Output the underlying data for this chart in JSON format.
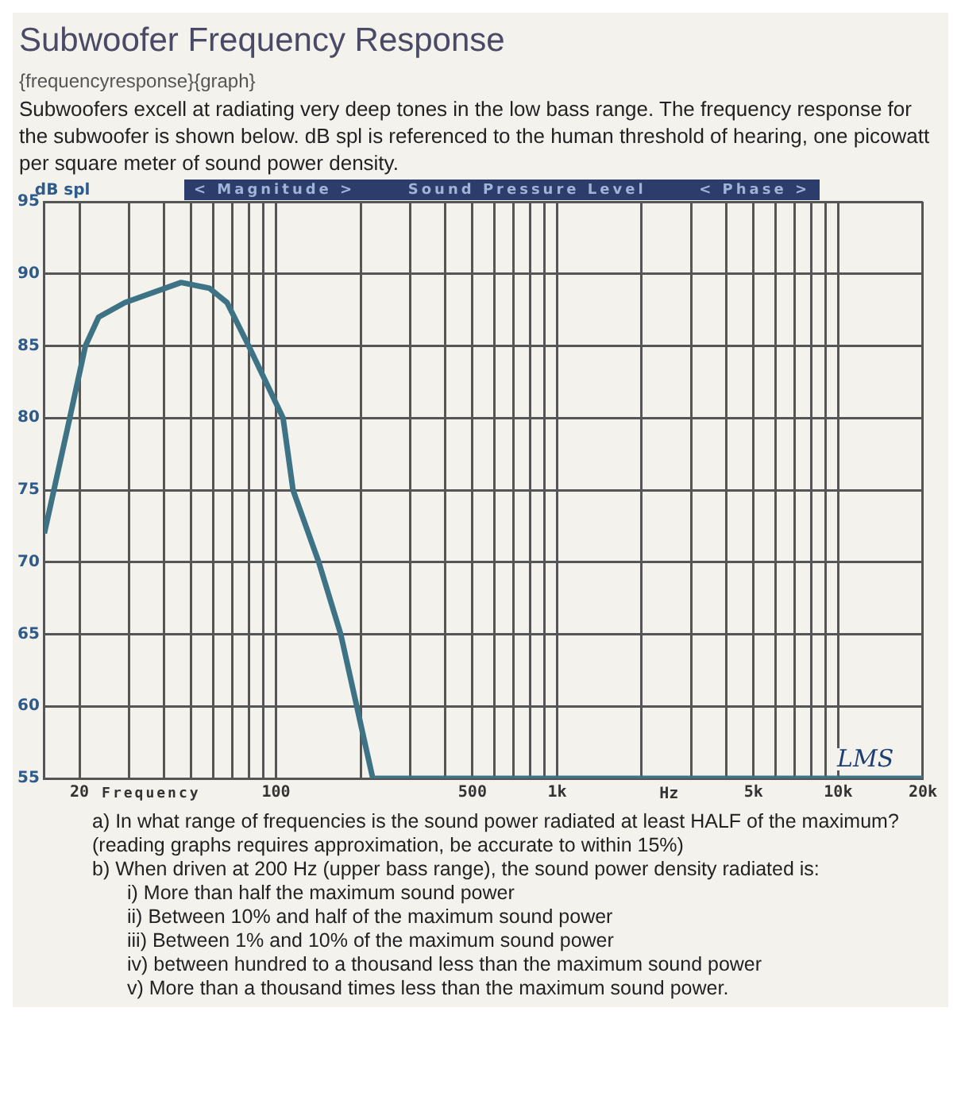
{
  "chart_data": {
    "type": "line",
    "title": "Subwoofer Frequency Response",
    "subtitle": "Subwoofers excell at radiating very deep tones in the low bass range. The frequency response for the subwoofer is shown below. dB spl is referenced to the human threshold of hearing, one picowatt per square meter of sound power density.",
    "xlabel": "Frequency",
    "ylabel": "dB spl",
    "x": [
      15,
      18,
      21,
      23.4,
      29,
      46,
      58,
      67,
      80,
      106,
      115,
      142,
      170,
      221,
      1000,
      10000,
      20000
    ],
    "series": [
      {
        "color": "#3d7385",
        "values": [
          72,
          79,
          85,
          87,
          88,
          89.4,
          89,
          88,
          85,
          80,
          75,
          70,
          65,
          55,
          55,
          55,
          55
        ]
      }
    ],
    "xlim": [
      15,
      20000
    ],
    "xticks": [
      {
        "value": 20,
        "label": "20"
      },
      {
        "value": 30,
        "label": null
      },
      {
        "value": 40,
        "label": null
      },
      {
        "value": 50,
        "label": null
      },
      {
        "value": 60,
        "label": null
      },
      {
        "value": 70,
        "label": null
      },
      {
        "value": 80,
        "label": null
      },
      {
        "value": 90,
        "label": null
      },
      {
        "value": 100,
        "label": "100"
      },
      {
        "value": 200,
        "label": null
      },
      {
        "value": 300,
        "label": null
      },
      {
        "value": 400,
        "label": null
      },
      {
        "value": 500,
        "label": "500"
      },
      {
        "value": 600,
        "label": null
      },
      {
        "value": 700,
        "label": null
      },
      {
        "value": 800,
        "label": null
      },
      {
        "value": 900,
        "label": null
      },
      {
        "value": 1000,
        "label": "1k"
      },
      {
        "value": 2000,
        "label": null
      },
      {
        "value": 3000,
        "label": null
      },
      {
        "value": 4000,
        "label": null
      },
      {
        "value": 5000,
        "label": "5k"
      },
      {
        "value": 6000,
        "label": null
      },
      {
        "value": 7000,
        "label": null
      },
      {
        "value": 8000,
        "label": null
      },
      {
        "value": 9000,
        "label": null
      },
      {
        "value": 10000,
        "label": "10k"
      },
      {
        "value": 20000,
        "label": "20k"
      }
    ],
    "ylim": [
      55,
      95
    ],
    "yticks": [
      55,
      60,
      65,
      70,
      75,
      80,
      85,
      90,
      95
    ],
    "log": "x",
    "grid": true,
    "legend": false,
    "marker": "none",
    "line_style": "solid",
    "annotations": [
      "{frequencyresponse}{graph}",
      "< Magnitude >",
      "Sound Pressure Level",
      "< Phase >",
      "Hz",
      "LMS",
      "a) In what range of frequencies is the sound power radiated at least HALF of the maximum? (reading graphs requires approximation, be accurate to within 15%)",
      "b) When driven at 200 Hz (upper bass range), the sound power density radiated is:",
      "i) More than half the maximum sound power",
      "ii) Between 10% and half of the maximum sound power",
      "iii) Between 1% and 10% of the maximum sound power",
      "iv) between hundred to a thousand less than the maximum sound power",
      "v) More than a thousand times less than the maximum sound power."
    ]
  }
}
